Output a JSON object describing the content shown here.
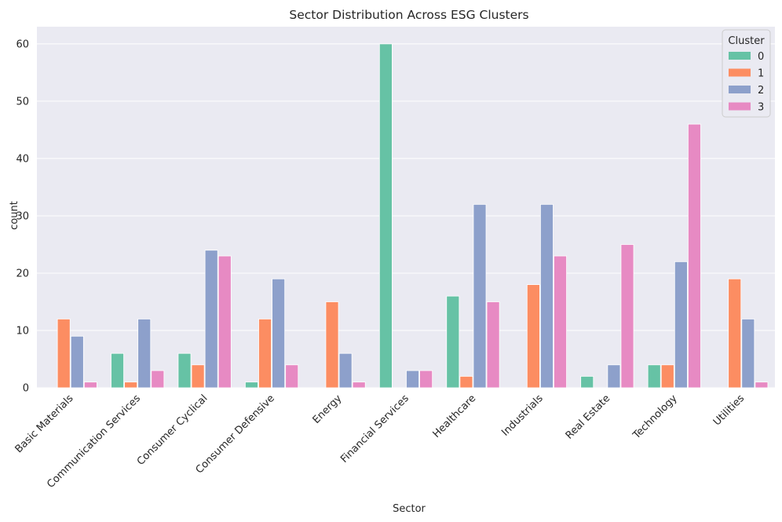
{
  "chart_data": {
    "type": "bar",
    "title": "Sector Distribution Across ESG Clusters",
    "xlabel": "Sector",
    "ylabel": "count",
    "ylim": [
      0,
      63
    ],
    "yticks": [
      0,
      10,
      20,
      30,
      40,
      50,
      60
    ],
    "grid": true,
    "legend": {
      "title": "Cluster",
      "placement": "top-right"
    },
    "categories": [
      "Basic Materials",
      "Communication Services",
      "Consumer Cyclical",
      "Consumer Defensive",
      "Energy",
      "Financial Services",
      "Healthcare",
      "Industrials",
      "Real Estate",
      "Technology",
      "Utilities"
    ],
    "series": [
      {
        "name": "0",
        "color": "#66c2a5",
        "values": [
          0,
          6,
          6,
          1,
          0,
          60,
          16,
          0,
          2,
          4,
          0
        ]
      },
      {
        "name": "1",
        "color": "#fc8d62",
        "values": [
          12,
          1,
          4,
          12,
          15,
          0,
          2,
          18,
          0,
          4,
          19
        ]
      },
      {
        "name": "2",
        "color": "#8da0cb",
        "values": [
          9,
          12,
          24,
          19,
          6,
          3,
          32,
          32,
          4,
          22,
          12
        ]
      },
      {
        "name": "3",
        "color": "#e78ac3",
        "values": [
          1,
          3,
          23,
          4,
          1,
          3,
          15,
          23,
          25,
          46,
          1
        ]
      }
    ]
  }
}
